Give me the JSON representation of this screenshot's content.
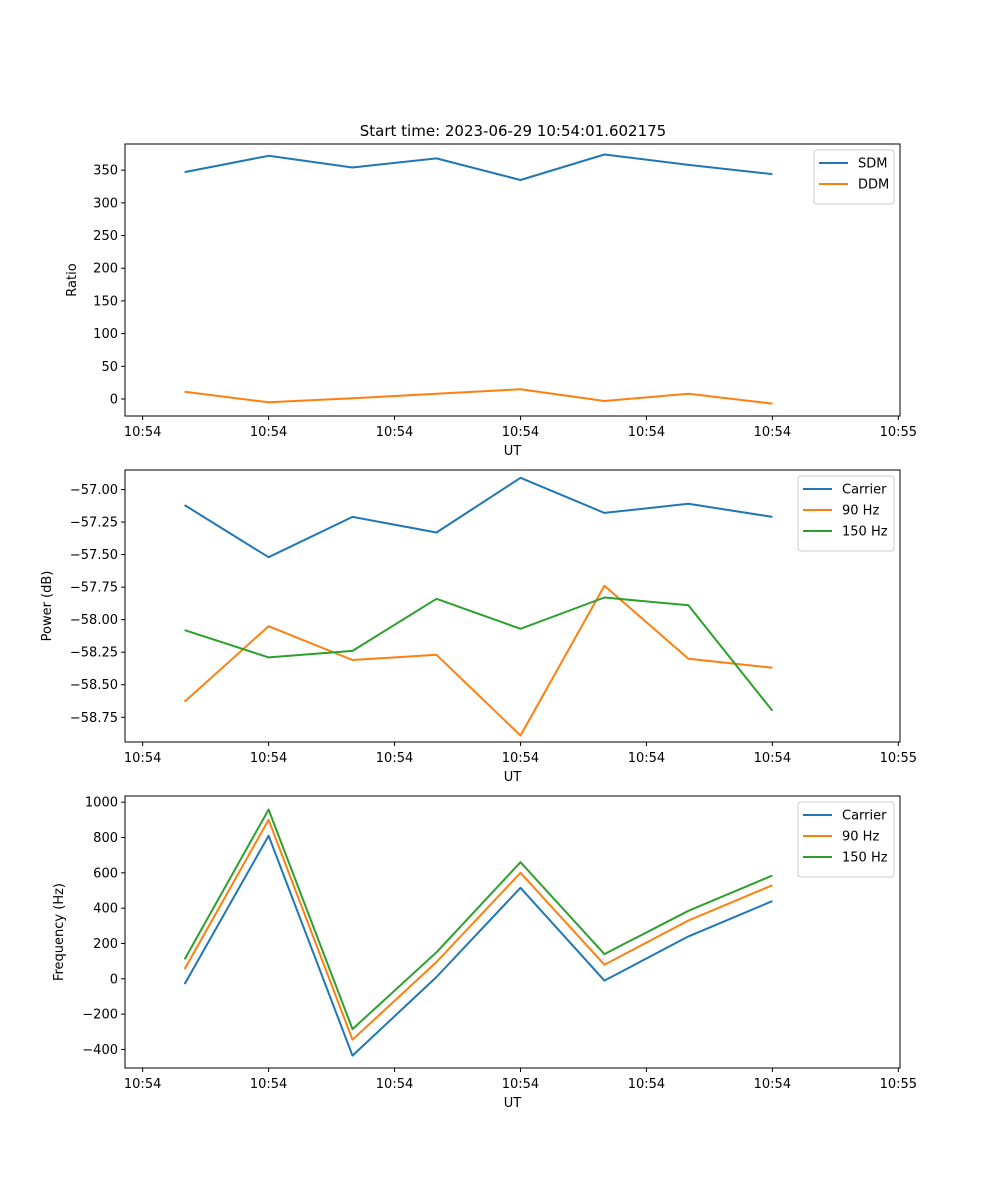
{
  "figure": {
    "title": "Start time: 2023-06-29 10:54:01.602175"
  },
  "chart_data": [
    {
      "type": "line",
      "xlabel": "UT",
      "ylabel": "Ratio",
      "x": [
        1,
        2,
        3,
        4,
        5,
        6,
        7,
        8
      ],
      "xlim": [
        0.29,
        9.52
      ],
      "x_ticks": [
        0.5,
        2.0,
        3.5,
        5.0,
        6.5,
        8.0,
        9.5
      ],
      "x_tick_labels": [
        "10:54",
        "10:54",
        "10:54",
        "10:54",
        "10:54",
        "10:54",
        "10:55"
      ],
      "ylim": [
        -26,
        390
      ],
      "y_ticks": [
        0,
        50,
        100,
        150,
        200,
        250,
        300,
        350
      ],
      "y_tick_labels": [
        "0",
        "50",
        "100",
        "150",
        "200",
        "250",
        "300",
        "350"
      ],
      "grid": false,
      "legend_position": "top-right",
      "series": [
        {
          "name": "SDM",
          "color": "#1f77b4",
          "values": [
            347,
            372,
            354,
            368,
            335,
            374,
            358,
            344
          ]
        },
        {
          "name": "DDM",
          "color": "#ff7f0e",
          "values": [
            11,
            -5,
            1,
            8,
            15,
            -3,
            8,
            -7
          ]
        }
      ]
    },
    {
      "type": "line",
      "xlabel": "UT",
      "ylabel": "Power (dB)",
      "x": [
        1,
        2,
        3,
        4,
        5,
        6,
        7,
        8
      ],
      "xlim": [
        0.29,
        9.52
      ],
      "x_ticks": [
        0.5,
        2.0,
        3.5,
        5.0,
        6.5,
        8.0,
        9.5
      ],
      "x_tick_labels": [
        "10:54",
        "10:54",
        "10:54",
        "10:54",
        "10:54",
        "10:54",
        "10:55"
      ],
      "ylim": [
        -58.94,
        -56.85
      ],
      "y_ticks": [
        -57.0,
        -57.25,
        -57.5,
        -57.75,
        -58.0,
        -58.25,
        -58.5,
        -58.75
      ],
      "y_tick_labels": [
        "−57.00",
        "−57.25",
        "−57.50",
        "−57.75",
        "−58.00",
        "−58.25",
        "−58.50",
        "−58.75"
      ],
      "grid": false,
      "legend_position": "top-right",
      "series": [
        {
          "name": "Carrier",
          "color": "#1f77b4",
          "values": [
            -57.12,
            -57.52,
            -57.21,
            -57.33,
            -56.91,
            -57.18,
            -57.11,
            -57.21
          ]
        },
        {
          "name": "90 Hz",
          "color": "#ff7f0e",
          "values": [
            -58.63,
            -58.05,
            -58.31,
            -58.27,
            -58.89,
            -57.74,
            -58.3,
            -58.37
          ]
        },
        {
          "name": "150 Hz",
          "color": "#2ca02c",
          "values": [
            -58.08,
            -58.29,
            -58.24,
            -57.84,
            -58.07,
            -57.83,
            -57.89,
            -58.7
          ]
        }
      ]
    },
    {
      "type": "line",
      "xlabel": "UT",
      "ylabel": "Frequency (Hz)",
      "x": [
        1,
        2,
        3,
        4,
        5,
        6,
        7,
        8
      ],
      "xlim": [
        0.29,
        9.52
      ],
      "x_ticks": [
        0.5,
        2.0,
        3.5,
        5.0,
        6.5,
        8.0,
        9.5
      ],
      "x_tick_labels": [
        "10:54",
        "10:54",
        "10:54",
        "10:54",
        "10:54",
        "10:54",
        "10:55"
      ],
      "ylim": [
        -505,
        1035
      ],
      "y_ticks": [
        -400,
        -200,
        0,
        200,
        400,
        600,
        800,
        1000
      ],
      "y_tick_labels": [
        "−400",
        "−200",
        "0",
        "200",
        "400",
        "600",
        "800",
        "1000"
      ],
      "grid": false,
      "legend_position": "top-right",
      "series": [
        {
          "name": "Carrier",
          "color": "#1f77b4",
          "values": [
            -30,
            810,
            -435,
            10,
            515,
            -10,
            240,
            440
          ]
        },
        {
          "name": "90 Hz",
          "color": "#ff7f0e",
          "values": [
            55,
            900,
            -345,
            95,
            600,
            80,
            330,
            530
          ]
        },
        {
          "name": "150 Hz",
          "color": "#2ca02c",
          "values": [
            110,
            958,
            -285,
            150,
            660,
            140,
            385,
            585
          ]
        }
      ]
    }
  ]
}
